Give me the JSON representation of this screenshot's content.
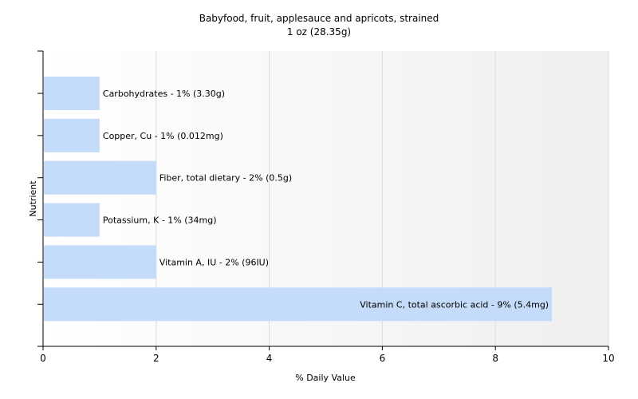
{
  "chart_data": {
    "type": "bar",
    "orientation": "horizontal",
    "title": "Babyfood, fruit, applesauce and apricots, strained",
    "subtitle": "1 oz (28.35g)",
    "xlabel": "% Daily Value",
    "ylabel": "Nutrient",
    "xlim": [
      0,
      10
    ],
    "xticks": [
      0,
      2,
      4,
      6,
      8,
      10
    ],
    "grid": true,
    "bar_color": "#c4dcfa",
    "categories": [
      "Carbohydrates",
      "Copper, Cu",
      "Fiber, total dietary",
      "Potassium, K",
      "Vitamin A, IU",
      "Vitamin C, total ascorbic acid"
    ],
    "values": [
      1,
      1,
      2,
      1,
      2,
      9
    ],
    "bar_labels": [
      "Carbohydrates - 1% (3.30g)",
      "Copper, Cu - 1% (0.012mg)",
      "Fiber, total dietary - 2% (0.5g)",
      "Potassium, K - 1% (34mg)",
      "Vitamin A, IU - 2% (96IU)",
      "Vitamin C, total ascorbic acid - 9% (5.4mg)"
    ]
  }
}
